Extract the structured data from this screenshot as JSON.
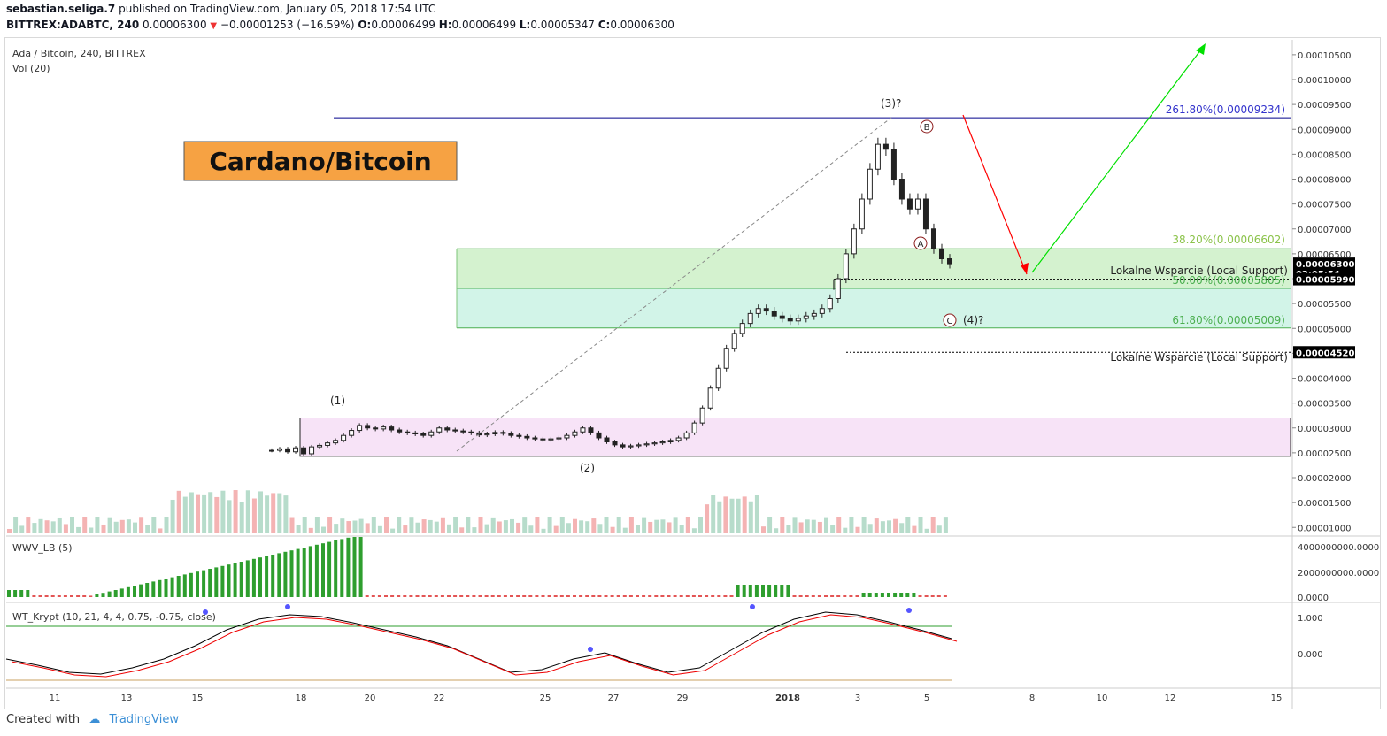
{
  "header": {
    "author": "sebastian.seliga.7",
    "published": "published on TradingView.com, January 05, 2018 17:54 UTC",
    "symbol": "BITTREX:ADABTC, 240",
    "last": "0.00006300",
    "change": "−0.00001253 (−16.59%)",
    "o_label": "O:",
    "o": "0.00006499",
    "h_label": "H:",
    "h": "0.00006499",
    "l_label": "L:",
    "l": "0.00005347",
    "c_label": "C:",
    "c": "0.00006300"
  },
  "legend": {
    "title": "Ada / Bitcoin, 240, BITTREX",
    "vol": "Vol (20)"
  },
  "title_box": "Cardano/Bitcoin",
  "footer": {
    "created": "Created with",
    "brand": "TradingView"
  },
  "colors": {
    "up": "#26a69a",
    "down": "#ef5350",
    "blue_line": "#00008b",
    "fib_green": "#8bc34a",
    "arrow_up": "#00e000",
    "arrow_down": "#ff0000",
    "title_bg": "#f6a243"
  },
  "chart_data": {
    "type": "candlestick",
    "y_range": [
      8.8e-06,
      0.000108
    ],
    "y_ticks": [
      "0.00010500",
      "0.00010000",
      "0.00009500",
      "0.00009000",
      "0.00008500",
      "0.00008000",
      "0.00007500",
      "0.00007000",
      "0.00006500",
      "0.00006000",
      "0.00005500",
      "0.00005000",
      "0.00004500",
      "0.00004000",
      "0.00003500",
      "0.00003000",
      "0.00002500",
      "0.00002000",
      "0.00001500",
      "0.00001000"
    ],
    "x_ticks": [
      "11",
      "13",
      "15",
      "18",
      "20",
      "22",
      "25",
      "27",
      "29",
      "2018",
      "3",
      "5",
      "8",
      "10",
      "12",
      "15"
    ],
    "price_labels": [
      {
        "value": 6.3e-05,
        "text": "0.00006300"
      },
      {
        "value": 6.11e-05,
        "text": "02:05:54"
      },
      {
        "value": 5.99e-05,
        "text": "0.00005990"
      },
      {
        "value": 4.52e-05,
        "text": "0.00004520"
      }
    ],
    "close_path": [
      2.55e-05,
      2.58e-05,
      2.52e-05,
      2.6e-05,
      2.48e-05,
      2.62e-05,
      2.65e-05,
      2.7e-05,
      2.75e-05,
      2.85e-05,
      2.95e-05,
      3.05e-05,
      3e-05,
      2.98e-05,
      3.02e-05,
      2.96e-05,
      2.92e-05,
      2.9e-05,
      2.88e-05,
      2.85e-05,
      2.92e-05,
      3e-05,
      2.96e-05,
      2.94e-05,
      2.92e-05,
      2.9e-05,
      2.86e-05,
      2.88e-05,
      2.91e-05,
      2.89e-05,
      2.85e-05,
      2.83e-05,
      2.8e-05,
      2.78e-05,
      2.76e-05,
      2.78e-05,
      2.8e-05,
      2.85e-05,
      2.92e-05,
      3e-05,
      2.9e-05,
      2.8e-05,
      2.72e-05,
      2.66e-05,
      2.62e-05,
      2.64e-05,
      2.66e-05,
      2.68e-05,
      2.7e-05,
      2.72e-05,
      2.75e-05,
      2.8e-05,
      2.9e-05,
      3.1e-05,
      3.4e-05,
      3.8e-05,
      4.2e-05,
      4.6e-05,
      4.9e-05,
      5.1e-05,
      5.3e-05,
      5.4e-05,
      5.35e-05,
      5.25e-05,
      5.2e-05,
      5.15e-05,
      5.2e-05,
      5.25e-05,
      5.3e-05,
      5.4e-05,
      5.6e-05,
      6e-05,
      6.5e-05,
      7e-05,
      7.6e-05,
      8.2e-05,
      8.7e-05,
      8.6e-05,
      8e-05,
      7.6e-05,
      7.4e-05,
      7.6e-05,
      7e-05,
      6.6e-05,
      6.4e-05,
      6.3e-05
    ],
    "annotations": {
      "wave_1": "(1)",
      "wave_2": "(2)",
      "wave_3": "(3)?",
      "wave_4": "(4)?",
      "A": "A",
      "B": "B",
      "C": "C",
      "fib_261": "261.80%(0.00009234)",
      "fib_38": "38.20%(0.00006602)",
      "fib_50": "50.00%(0.00005805)",
      "fib_61": "61.80%(0.00005009)",
      "support1": "Lokalne Wsparcie (Local Support)",
      "support2": "Lokalne Wsparcie (Local Support)"
    },
    "fib_levels": [
      9.234e-05,
      6.602e-05,
      5.805e-05,
      5.009e-05
    ],
    "support_levels": [
      5.99e-05,
      4.52e-05
    ],
    "box_range": [
      2.43e-05,
      3.2e-05
    ]
  },
  "wwv": {
    "label": "WWV_LB (5)",
    "ticks": [
      "4000000000.0000",
      "2000000000.0000",
      "0.0000"
    ]
  },
  "wt": {
    "label": "WT_Krypt (10, 21, 4, 4, 0.75, -0.75, close)",
    "ticks": [
      "1.000",
      "0.000"
    ]
  }
}
